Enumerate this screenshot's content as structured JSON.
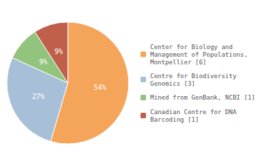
{
  "chart_data": {
    "type": "pie",
    "categories": [
      "Center for Biology and\nManagement of Populations,\nMontpellier [6]",
      "Centre for Biodiversity\nGenomics [3]",
      "Mined from GenBank, NCBI [1]",
      "Canadian Centre for DNA\nBarcoding [1]"
    ],
    "values": [
      54,
      27,
      9,
      9
    ],
    "value_labels": [
      "54%",
      "27%",
      "9%",
      "9%"
    ],
    "colors": [
      "#F5A55A",
      "#A8BFD8",
      "#93C47D",
      "#C0604A"
    ],
    "data_labels": true,
    "legend": "right"
  }
}
